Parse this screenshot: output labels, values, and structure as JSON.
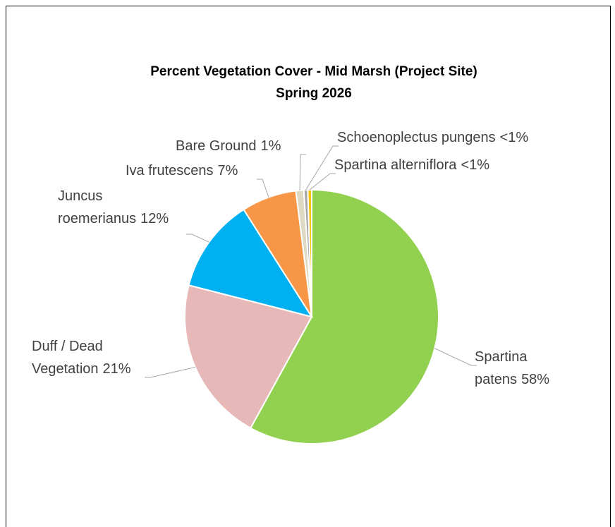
{
  "chart_data": {
    "type": "pie",
    "title": "Percent Vegetation Cover - Mid Marsh (Project Site)",
    "subtitle": "Spring 2026",
    "categories": [
      "Spartina patens",
      "Duff / Dead Vegetation",
      "Juncus roemerianus",
      "Iva frutescens",
      "Bare Ground",
      "Schoenoplectus  pungens",
      "Spartina alterniflora"
    ],
    "values": [
      58,
      21,
      12,
      7,
      1,
      0.5,
      0.5
    ],
    "value_labels": [
      "58%",
      "21%",
      "12%",
      "7%",
      "1%",
      "<1%",
      "<1%"
    ],
    "colors": [
      "#92d050",
      "#e6b9b8",
      "#00b0f0",
      "#f79646",
      "#ddd9c3",
      "#a6a6a6",
      "#ffc000"
    ]
  }
}
